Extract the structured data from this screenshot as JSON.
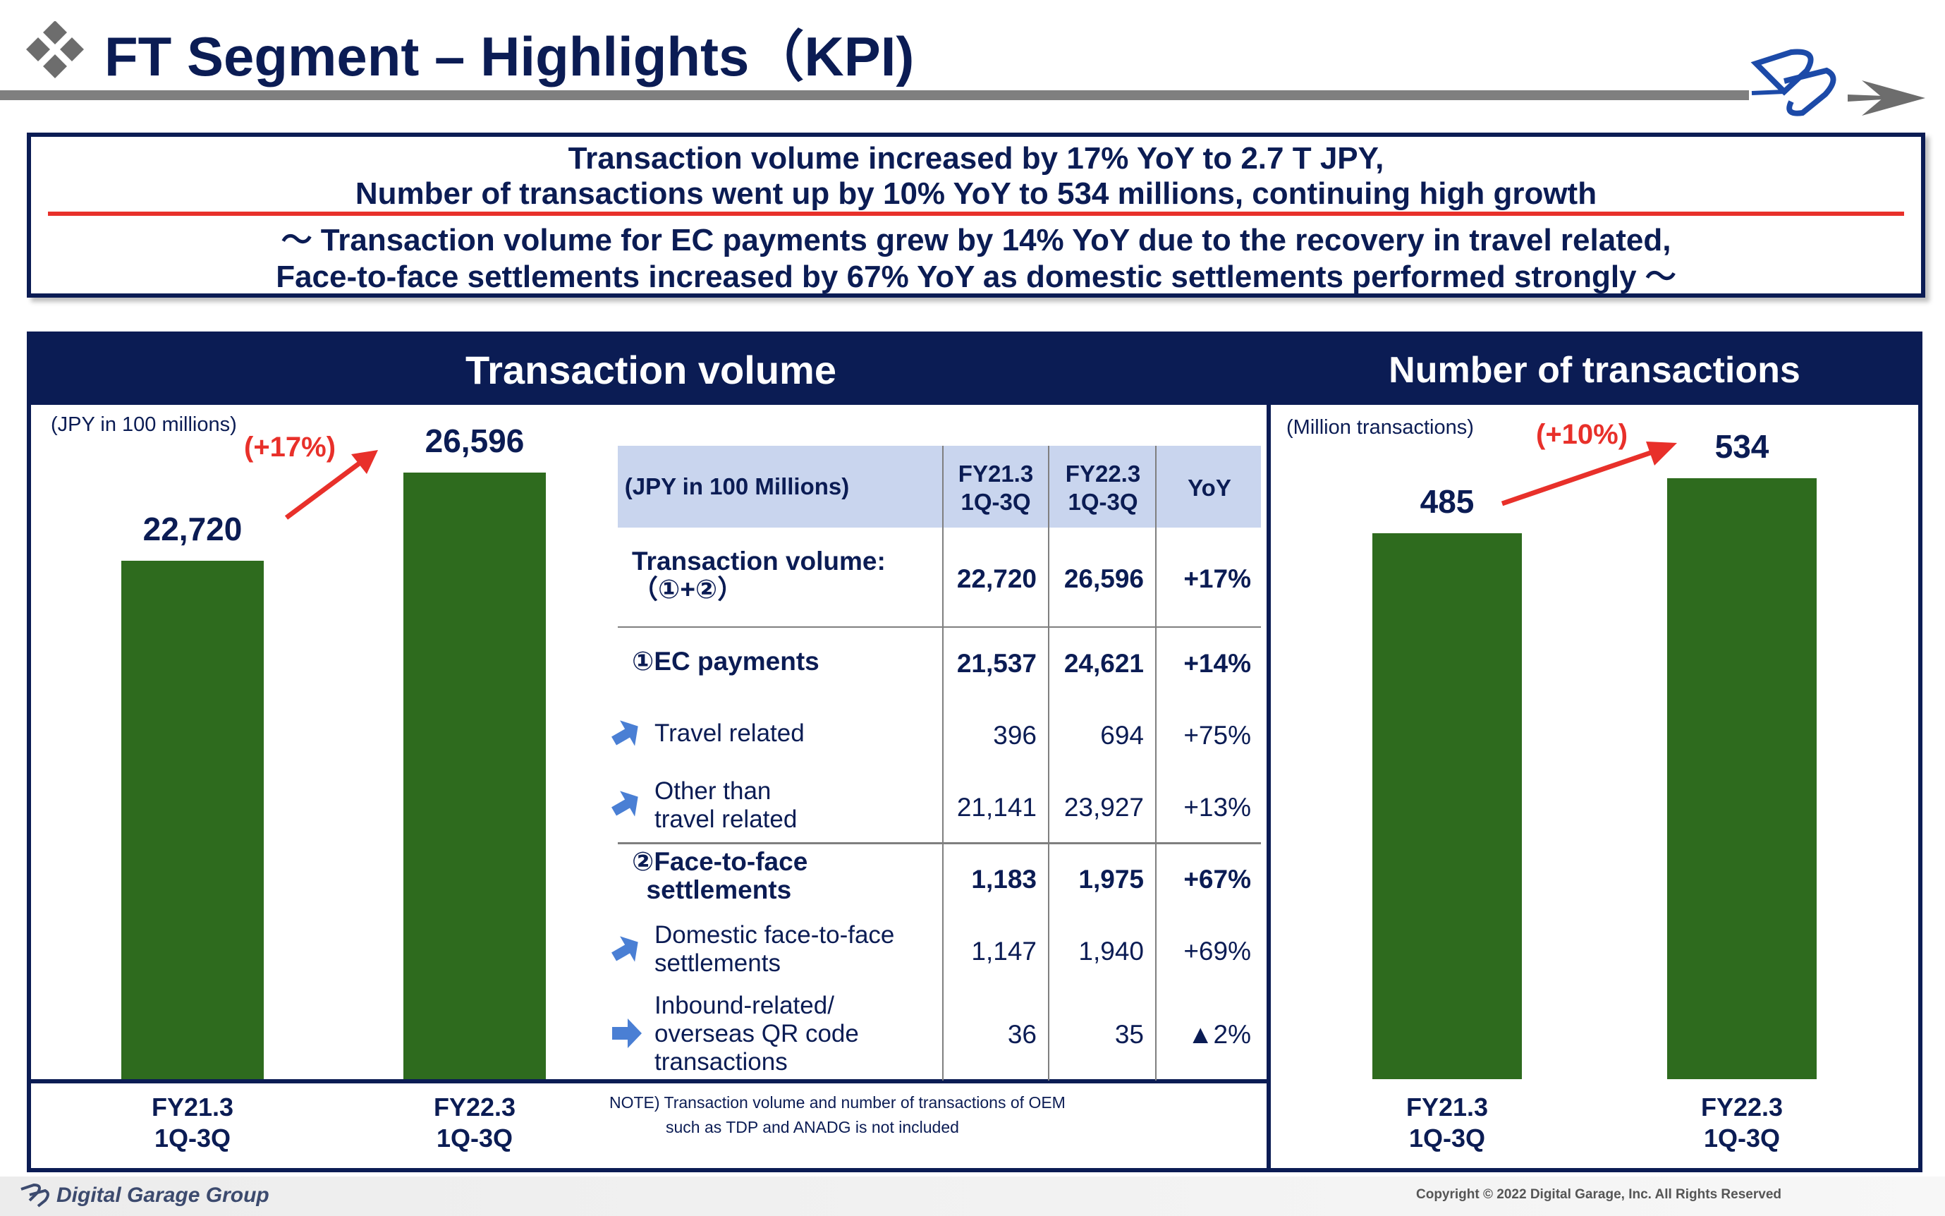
{
  "header": {
    "title": "FT Segment – Highlights（KPI)"
  },
  "summary": {
    "line1": "Transaction volume increased by 17% YoY to 2.7 T JPY,",
    "line2": "Number of transactions went up by 10% YoY to 534 millions, continuing high growth",
    "line3": "～ Transaction volume for EC payments grew by 14% YoY due to the recovery in travel related,",
    "line4": "Face-to-face settlements increased by 67% YoY as domestic settlements performed strongly ～"
  },
  "colors": {
    "navy": "#0b1c54",
    "bar_green": "#2e6b1e",
    "accent_red": "#e8302a",
    "table_header": "#c9d5ee",
    "arrow_blue": "#4a7fd4"
  },
  "chart_data": [
    {
      "type": "bar",
      "title": "Transaction volume",
      "ylabel": "(JPY in 100 millions)",
      "categories": [
        "FY21.3\n1Q-3Q",
        "FY22.3\n1Q-3Q"
      ],
      "values": [
        22720,
        26596
      ],
      "value_labels": [
        "22,720",
        "26,596"
      ],
      "growth_label": "(+17%)",
      "ylim": [
        0,
        26596
      ]
    },
    {
      "type": "bar",
      "title": "Number of transactions",
      "ylabel": "(Million transactions)",
      "categories": [
        "FY21.3\n1Q-3Q",
        "FY22.3\n1Q-3Q"
      ],
      "values": [
        485,
        534
      ],
      "value_labels": [
        "485",
        "534"
      ],
      "growth_label": "(+10%)",
      "ylim": [
        0,
        534
      ]
    },
    {
      "type": "table",
      "unit_label": "(JPY in 100 Millions)",
      "columns": [
        "FY21.3\n1Q-3Q",
        "FY22.3\n1Q-3Q",
        "YoY"
      ],
      "rows": [
        {
          "label": "Transaction volume:\n（①+②）",
          "fy21": "22,720",
          "fy22": "26,596",
          "yoy": "+17%",
          "bold": true
        },
        {
          "label": "①EC payments",
          "fy21": "21,537",
          "fy22": "24,621",
          "yoy": "+14%",
          "bold": true
        },
        {
          "label": "Travel related",
          "fy21": "396",
          "fy22": "694",
          "yoy": "+75%",
          "icon": "up-right-arrow-icon"
        },
        {
          "label": "Other than\ntravel related",
          "fy21": "21,141",
          "fy22": "23,927",
          "yoy": "+13%",
          "icon": "up-right-arrow-icon"
        },
        {
          "label": "②Face-to-face\n  settlements",
          "fy21": "1,183",
          "fy22": "1,975",
          "yoy": "+67%",
          "bold": true
        },
        {
          "label": "Domestic face-to-face\nsettlements",
          "fy21": "1,147",
          "fy22": "1,940",
          "yoy": "+69%",
          "icon": "up-right-arrow-icon"
        },
        {
          "label": "Inbound-related/\noverseas QR code\ntransactions",
          "fy21": "36",
          "fy22": "35",
          "yoy": "▲2%",
          "icon": "right-arrow-icon"
        }
      ]
    }
  ],
  "note": {
    "line1": "NOTE)  Transaction volume and number of transactions of OEM",
    "line2": "such as TDP and ANADG is not included"
  },
  "footer": {
    "brand": "Digital Garage Group",
    "copyright": "Copyright © 2022 Digital Garage, Inc. All Rights Reserved"
  }
}
